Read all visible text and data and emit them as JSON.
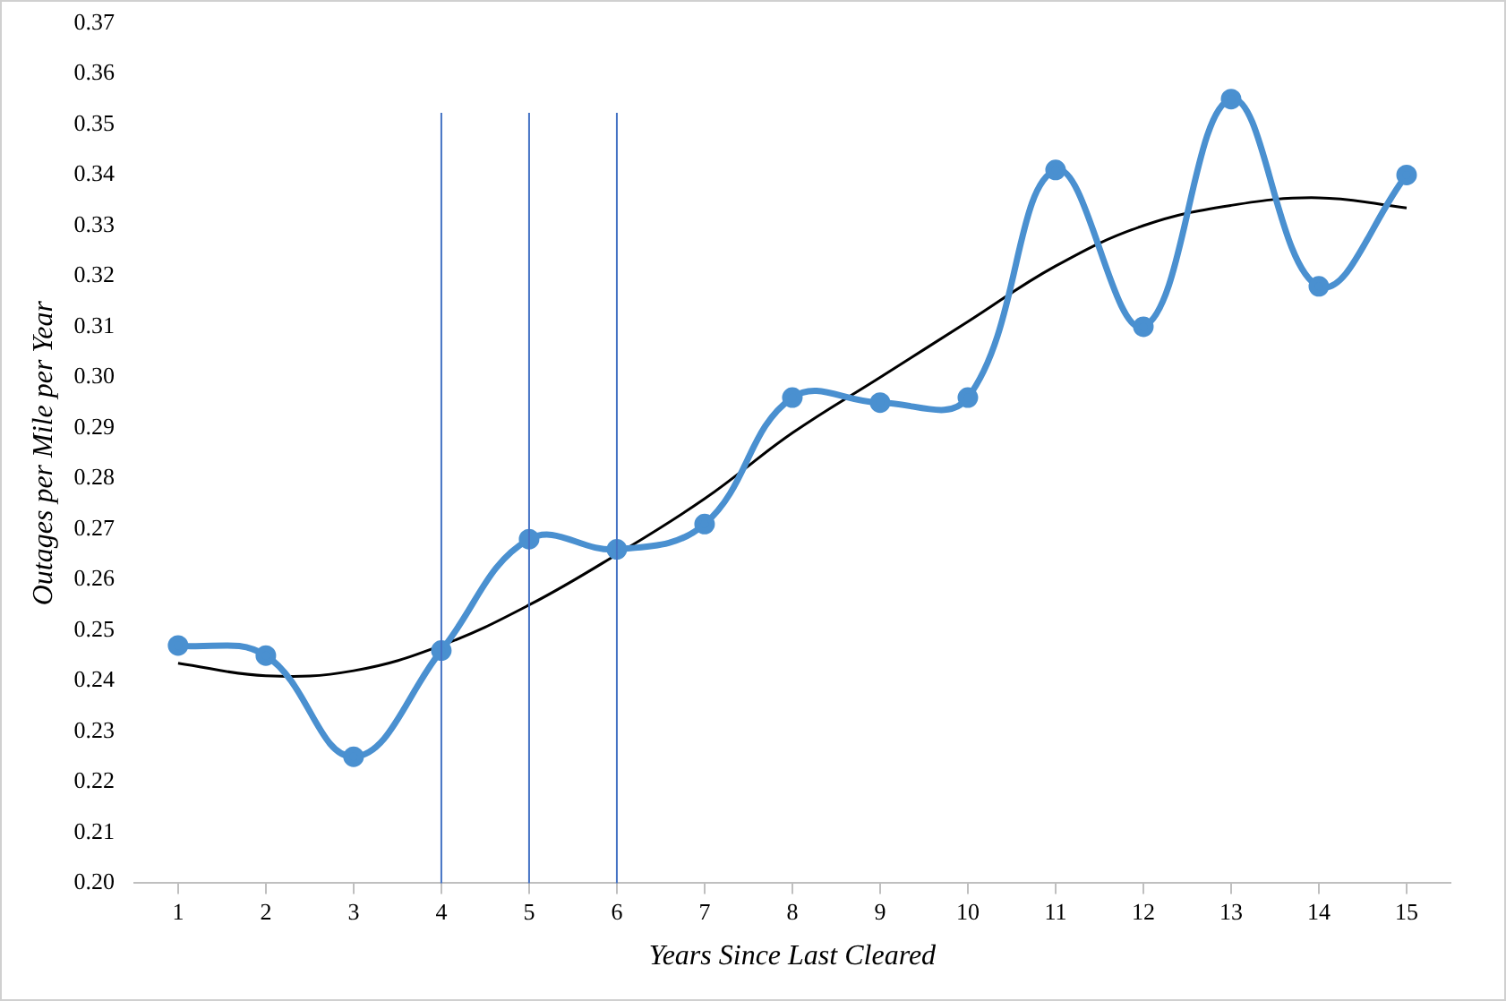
{
  "chart_data": {
    "type": "line",
    "xlabel": "Years Since Last Cleared",
    "ylabel": "Outages per Mile per Year",
    "x": [
      1,
      2,
      3,
      4,
      5,
      6,
      7,
      8,
      9,
      10,
      11,
      12,
      13,
      14,
      15
    ],
    "xlim": [
      0.5,
      15.5
    ],
    "xticks": [
      1,
      2,
      3,
      4,
      5,
      6,
      7,
      8,
      9,
      10,
      11,
      12,
      13,
      14,
      15
    ],
    "ylim": [
      0.2,
      0.37
    ],
    "yticks": [
      {
        "value": 0.2,
        "label": "0.20"
      },
      {
        "value": 0.21,
        "label": "0.21"
      },
      {
        "value": 0.22,
        "label": "0.22"
      },
      {
        "value": 0.23,
        "label": "0.23"
      },
      {
        "value": 0.24,
        "label": "0.24"
      },
      {
        "value": 0.25,
        "label": "0.25"
      },
      {
        "value": 0.26,
        "label": "0.26"
      },
      {
        "value": 0.27,
        "label": "0.27"
      },
      {
        "value": 0.28,
        "label": "0.28"
      },
      {
        "value": 0.29,
        "label": "0.29"
      },
      {
        "value": 0.3,
        "label": "0.30"
      },
      {
        "value": 0.31,
        "label": "0.31"
      },
      {
        "value": 0.32,
        "label": "0.32"
      },
      {
        "value": 0.33,
        "label": "0.33"
      },
      {
        "value": 0.34,
        "label": "0.34"
      },
      {
        "value": 0.35,
        "label": "0.35"
      },
      {
        "value": 0.36,
        "label": "0.36"
      },
      {
        "value": 0.37,
        "label": "0.37"
      }
    ],
    "series": [
      {
        "color": "#4a90d0",
        "marker": "circle",
        "values": [
          0.247,
          0.245,
          0.225,
          0.246,
          0.268,
          0.266,
          0.271,
          0.296,
          0.295,
          0.296,
          0.341,
          0.31,
          0.355,
          0.318,
          0.34
        ]
      },
      {
        "color": "#000000",
        "marker": "none",
        "values": [
          0.2435,
          0.241,
          0.242,
          0.247,
          0.255,
          0.265,
          0.276,
          0.289,
          0.3,
          0.311,
          0.322,
          0.33,
          0.334,
          0.3355,
          0.3335
        ]
      }
    ],
    "ref_lines": [
      {
        "axis": "x",
        "value": 4,
        "color": "#4472c4"
      },
      {
        "axis": "x",
        "value": 5,
        "color": "#4472c4"
      },
      {
        "axis": "x",
        "value": 6,
        "color": "#4472c4"
      }
    ],
    "grid": false,
    "legend": false
  }
}
